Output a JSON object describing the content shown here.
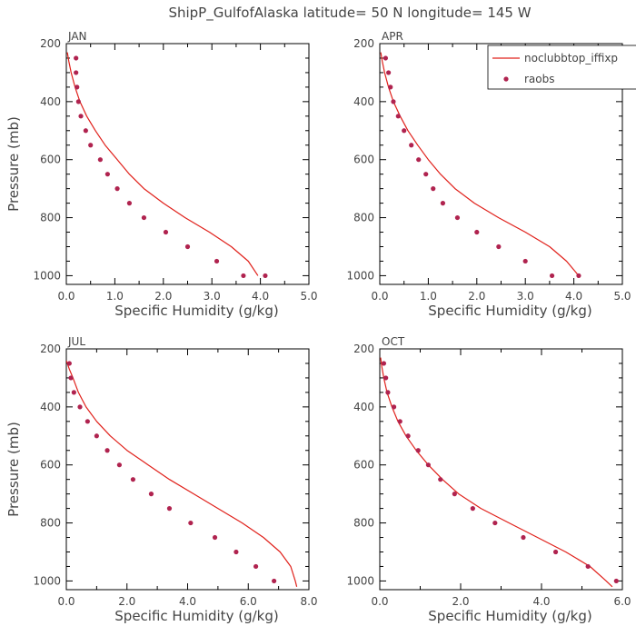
{
  "figure": {
    "title": "ShipP_GulfofAlaska   latitude= 50 N longitude= 145 W",
    "colors": {
      "model_line": "#e0201a",
      "raobs_marker": "#b0234f",
      "axes": "#000000",
      "text": "#444444"
    }
  },
  "chart_data": [
    {
      "type": "line",
      "panel_label": "JAN",
      "xlabel": "Specific Humidity (g/kg)",
      "ylabel": "Pressure (mb)",
      "xlim": [
        0,
        5
      ],
      "ylim": [
        200,
        1030
      ],
      "y_inverted": true,
      "xticks": [
        0,
        1,
        2,
        3,
        4,
        5
      ],
      "xtick_labels": [
        "0.0",
        "1.0",
        "2.0",
        "3.0",
        "4.0",
        "5.0"
      ],
      "yticks": [
        200,
        400,
        600,
        800,
        1000
      ],
      "ytick_labels": [
        "200",
        "400",
        "600",
        "800",
        "1000"
      ],
      "legend": null,
      "series": [
        {
          "name": "noclubbtop_iffixp",
          "style": "line",
          "x": [
            0.02,
            0.05,
            0.1,
            0.18,
            0.28,
            0.42,
            0.6,
            0.8,
            1.05,
            1.3,
            1.6,
            2.0,
            2.45,
            2.95,
            3.4,
            3.75,
            3.95
          ],
          "y": [
            230,
            260,
            300,
            350,
            400,
            450,
            500,
            550,
            600,
            650,
            700,
            750,
            800,
            850,
            900,
            950,
            1000
          ]
        },
        {
          "name": "raobs",
          "style": "markers",
          "x": [
            0.2,
            0.2,
            0.22,
            0.25,
            0.3,
            0.4,
            0.5,
            0.7,
            0.85,
            1.05,
            1.3,
            1.6,
            2.05,
            2.5,
            3.1,
            3.65,
            4.1
          ],
          "y": [
            250,
            300,
            350,
            400,
            450,
            500,
            550,
            600,
            650,
            700,
            750,
            800,
            850,
            900,
            950,
            1000,
            1000
          ]
        }
      ]
    },
    {
      "type": "line",
      "panel_label": "APR",
      "xlabel": "Specific Humidity (g/kg)",
      "ylabel": "",
      "xlim": [
        0,
        5
      ],
      "ylim": [
        200,
        1030
      ],
      "y_inverted": true,
      "xticks": [
        0,
        1,
        2,
        3,
        4,
        5
      ],
      "xtick_labels": [
        "0.0",
        "1.0",
        "2.0",
        "3.0",
        "4.0",
        "5.0"
      ],
      "yticks": [
        200,
        400,
        600,
        800,
        1000
      ],
      "ytick_labels": [
        "200",
        "400",
        "600",
        "800",
        "1000"
      ],
      "legend": {
        "placement": "top-right",
        "entries": [
          "noclubbtop_iffixp",
          "raobs"
        ]
      },
      "series": [
        {
          "name": "noclubbtop_iffixp",
          "style": "line",
          "x": [
            0.02,
            0.05,
            0.1,
            0.18,
            0.28,
            0.42,
            0.58,
            0.78,
            1.0,
            1.25,
            1.55,
            1.95,
            2.45,
            3.0,
            3.5,
            3.85,
            4.1
          ],
          "y": [
            230,
            260,
            300,
            350,
            400,
            450,
            500,
            550,
            600,
            650,
            700,
            750,
            800,
            850,
            900,
            950,
            1000
          ]
        },
        {
          "name": "raobs",
          "style": "markers",
          "x": [
            0.12,
            0.18,
            0.22,
            0.28,
            0.38,
            0.5,
            0.65,
            0.8,
            0.95,
            1.1,
            1.3,
            1.6,
            2.0,
            2.45,
            3.0,
            3.55,
            4.1
          ],
          "y": [
            250,
            300,
            350,
            400,
            450,
            500,
            550,
            600,
            650,
            700,
            750,
            800,
            850,
            900,
            950,
            1000,
            1000
          ]
        }
      ]
    },
    {
      "type": "line",
      "panel_label": "JUL",
      "xlabel": "Specific Humidity (g/kg)",
      "ylabel": "Pressure (mb)",
      "xlim": [
        0,
        8
      ],
      "ylim": [
        200,
        1030
      ],
      "y_inverted": true,
      "xticks": [
        0,
        2,
        4,
        6,
        8
      ],
      "xtick_labels": [
        "0.0",
        "2.0",
        "4.0",
        "6.0",
        "8.0"
      ],
      "yticks": [
        200,
        400,
        600,
        800,
        1000
      ],
      "ytick_labels": [
        "200",
        "400",
        "600",
        "800",
        "1000"
      ],
      "legend": null,
      "series": [
        {
          "name": "noclubbtop_iffixp",
          "style": "line",
          "x": [
            0.0,
            0.1,
            0.22,
            0.4,
            0.65,
            1.0,
            1.45,
            2.0,
            2.7,
            3.4,
            4.2,
            5.0,
            5.8,
            6.5,
            7.05,
            7.4,
            7.55,
            7.6
          ],
          "y": [
            240,
            270,
            300,
            350,
            400,
            450,
            500,
            550,
            600,
            650,
            700,
            750,
            800,
            850,
            900,
            950,
            1000,
            1020
          ]
        },
        {
          "name": "raobs",
          "style": "markers",
          "x": [
            0.1,
            0.15,
            0.25,
            0.45,
            0.7,
            1.0,
            1.35,
            1.75,
            2.2,
            2.8,
            3.4,
            4.1,
            4.9,
            5.6,
            6.25,
            6.85
          ],
          "y": [
            250,
            300,
            350,
            400,
            450,
            500,
            550,
            600,
            650,
            700,
            750,
            800,
            850,
            900,
            950,
            1000
          ]
        }
      ]
    },
    {
      "type": "line",
      "panel_label": "OCT",
      "xlabel": "Specific Humidity (g/kg)",
      "ylabel": "",
      "xlim": [
        0,
        6
      ],
      "ylim": [
        200,
        1030
      ],
      "y_inverted": true,
      "xticks": [
        0,
        2,
        4,
        6
      ],
      "xtick_labels": [
        "0.0",
        "2.0",
        "4.0",
        "6.0"
      ],
      "yticks": [
        200,
        400,
        600,
        800,
        1000
      ],
      "ytick_labels": [
        "200",
        "400",
        "600",
        "800",
        "1000"
      ],
      "legend": null,
      "series": [
        {
          "name": "noclubbtop_iffixp",
          "style": "line",
          "x": [
            0.02,
            0.05,
            0.1,
            0.18,
            0.3,
            0.45,
            0.65,
            0.9,
            1.2,
            1.55,
            1.95,
            2.5,
            3.2,
            3.9,
            4.6,
            5.2,
            5.6,
            5.75
          ],
          "y": [
            230,
            260,
            300,
            350,
            400,
            450,
            500,
            550,
            600,
            650,
            700,
            750,
            800,
            850,
            900,
            950,
            1000,
            1020
          ]
        },
        {
          "name": "raobs",
          "style": "markers",
          "x": [
            0.1,
            0.15,
            0.2,
            0.35,
            0.5,
            0.7,
            0.95,
            1.2,
            1.5,
            1.85,
            2.3,
            2.85,
            3.55,
            4.35,
            5.15,
            5.85
          ],
          "y": [
            250,
            300,
            350,
            400,
            450,
            500,
            550,
            600,
            650,
            700,
            750,
            800,
            850,
            900,
            950,
            1000
          ]
        }
      ]
    }
  ]
}
